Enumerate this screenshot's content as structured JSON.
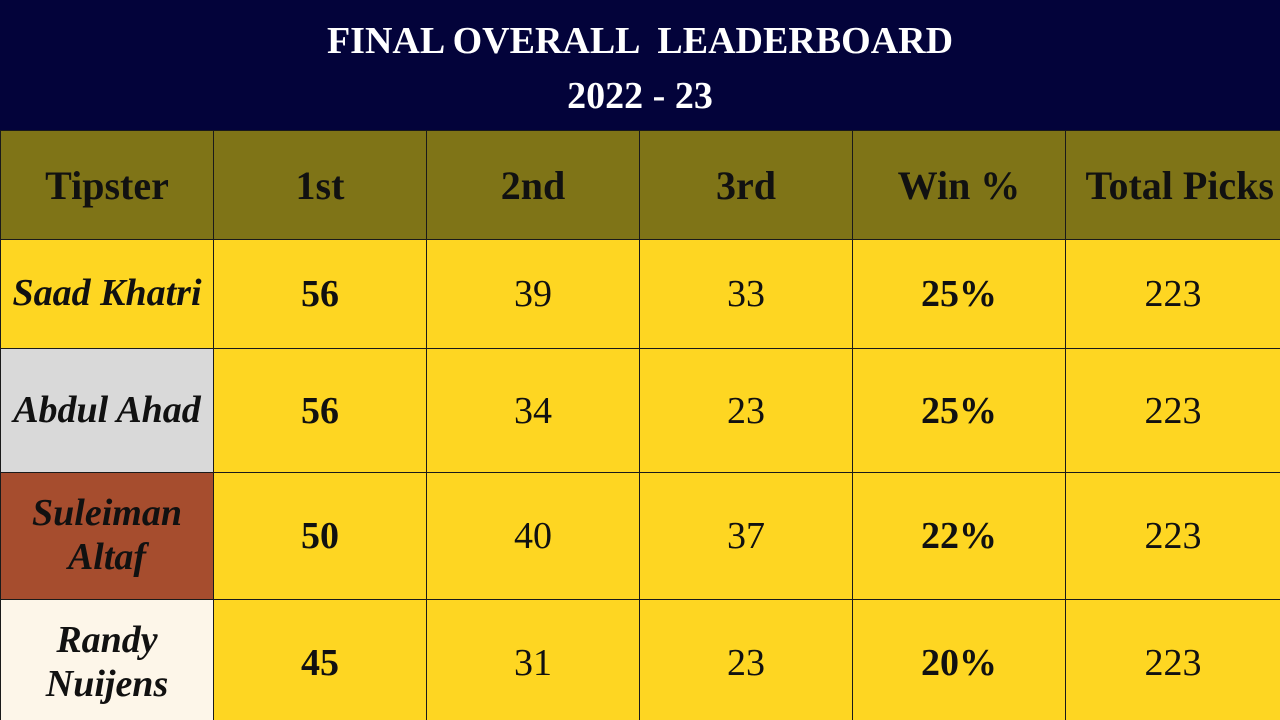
{
  "title": {
    "line1": "FINAL OVERALL  LEADERBOARD",
    "line2": "2022 - 23",
    "background": "#03033a"
  },
  "headers": {
    "tipster": "Tipster",
    "first": "1st",
    "second": "2nd",
    "third": "3rd",
    "win_pct": "Win %",
    "total_picks": "Total Picks",
    "background": "#7f7417"
  },
  "rows": [
    {
      "name": "Saad Khatri",
      "first": "56",
      "second": "39",
      "third": "33",
      "win_pct": "25%",
      "total_picks": "223",
      "name_bg": "#fed622"
    },
    {
      "name": "Abdul Ahad",
      "first": "56",
      "second": "34",
      "third": "23",
      "win_pct": "25%",
      "total_picks": "223",
      "name_bg": "#d9d9d9"
    },
    {
      "name": "Suleiman Altaf",
      "first": "50",
      "second": "40",
      "third": "37",
      "win_pct": "22%",
      "total_picks": "223",
      "name_bg": "#a64d2e"
    },
    {
      "name": "Randy Nuijens",
      "first": "45",
      "second": "31",
      "third": "23",
      "win_pct": "20%",
      "total_picks": "223",
      "name_bg": "#fdf6e9"
    }
  ],
  "cell_background": "#fed622"
}
